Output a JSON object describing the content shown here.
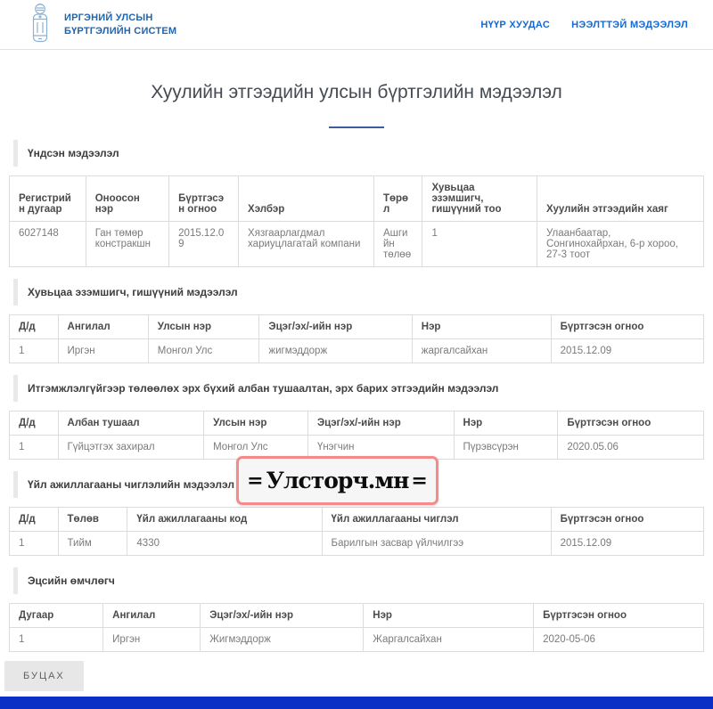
{
  "header": {
    "logo": {
      "line1": "ИРГЭНИЙ УЛСЫН",
      "line2": "БҮРТГЭЛИЙН СИСТЕМ"
    },
    "nav": [
      {
        "label": "НҮҮР ХУУДАС"
      },
      {
        "label": "НЭЭЛТТЭЙ МЭДЭЭЛЭЛ"
      }
    ]
  },
  "page_title": "Хуулийн этгээдийн улсын бүртгэлийн мэдээлэл",
  "sections": [
    {
      "title": "Үндсэн мэдээлэл",
      "columns": [
        "Регистрийн дугаар",
        "Оноосон нэр",
        "Бүртгэсэн огноо",
        "Хэлбэр",
        "Төрөл",
        "Хувьцаа эзэмшигч, гишүүний тоо",
        "Хуулийн этгээдийн хаяг"
      ],
      "rows": [
        [
          "6027148",
          "Ган төмөр констракшн",
          "2015.12.09",
          "Хязгаарлагдмал хариуцлагатай компани",
          "Ашгийн төлөө",
          "1",
          "Улаанбаатар, Сонгинохайрхан, 6-р хороо, 27-3 тоот"
        ]
      ]
    },
    {
      "title": "Хувьцаа эзэмшигч, гишүүний мэдээлэл",
      "columns": [
        "Д/д",
        "Ангилал",
        "Улсын нэр",
        "Эцэг/эх/-ийн нэр",
        "Нэр",
        "Бүртгэсэн огноо"
      ],
      "rows": [
        [
          "1",
          "Иргэн",
          "Монгол Улс",
          "жигмэддорж",
          "жаргалсайхан",
          "2015.12.09"
        ]
      ]
    },
    {
      "title": "Итгэмжлэлгүйгээр төлөөлөх эрх бүхий албан тушаалтан, эрх барих этгээдийн мэдээлэл",
      "columns": [
        "Д/д",
        "Албан тушаал",
        "Улсын нэр",
        "Эцэг/эх/-ийн нэр",
        "Нэр",
        "Бүртгэсэн огноо"
      ],
      "rows": [
        [
          "1",
          "Гүйцэтгэх захирал",
          "Монгол Улс",
          "Үнэгчин",
          "Пүрэвсүрэн",
          "2020.05.06"
        ]
      ]
    },
    {
      "title": "Үйл ажиллагааны чиглэлийн мэдээлэл",
      "columns": [
        "Д/д",
        "Төлөв",
        "Үйл ажиллагааны код",
        "Үйл ажиллагааны чиглэл",
        "Бүртгэсэн огноо"
      ],
      "rows": [
        [
          "1",
          "Тийм",
          "4330",
          "Барилгын засвар үйлчилгээ",
          "2015.12.09"
        ]
      ]
    },
    {
      "title": "Эцсийн өмчлөгч",
      "columns": [
        "Дугаар",
        "Ангилал",
        "Эцэг/эх/-ийн нэр",
        "Нэр",
        "Бүртгэсэн огноо"
      ],
      "rows": [
        [
          "1",
          "Иргэн",
          "Жигмэддорж",
          "Жаргалсайхан",
          "2020-05-06"
        ]
      ]
    }
  ],
  "watermark": {
    "flank": "=",
    "text": "Улсторч.мн"
  },
  "back_button_label": "БУЦАХ",
  "colors": {
    "nav_link": "#1669d2",
    "logo_text": "#2265ad",
    "title_underline": "#3d5e9e",
    "footer_bar": "#0a2fc4",
    "watermark_border": "#f48a8a"
  }
}
